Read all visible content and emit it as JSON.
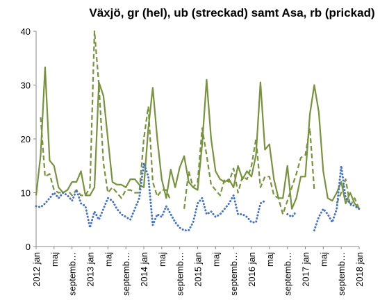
{
  "chart_data": {
    "type": "line",
    "title": "Växjö, gr (hel), ub (streckad) samt Asa, rb (prickad)",
    "categories": [
      "2012 jan",
      null,
      null,
      null,
      "maj",
      null,
      null,
      null,
      "septemb…",
      null,
      null,
      null,
      "2013 jan",
      null,
      null,
      null,
      "maj",
      null,
      null,
      null,
      "septemb…",
      null,
      null,
      null,
      "2014 jan",
      null,
      null,
      null,
      "maj",
      null,
      null,
      null,
      "septemb…",
      null,
      null,
      null,
      "2015 jan",
      null,
      null,
      null,
      "maj",
      null,
      null,
      null,
      "septemb…",
      null,
      null,
      null,
      "2016 jan",
      null,
      null,
      null,
      "maj",
      null,
      null,
      null,
      "septemb…",
      null,
      null,
      null,
      "2017 jan",
      null,
      null,
      null,
      "maj",
      null,
      null,
      null,
      "septemb…",
      null,
      null,
      null,
      "2018 jan"
    ],
    "ylim": [
      0,
      40
    ],
    "yticks": [
      0,
      10,
      20,
      30,
      40
    ],
    "grid": false,
    "series": [
      {
        "color": "#77933c",
        "style": "solid",
        "values": [
          9.5,
          17,
          33.3,
          16,
          15,
          11,
          10,
          10.5,
          12,
          12,
          14,
          9.5,
          9.5,
          11,
          30.5,
          28,
          20,
          12,
          11.5,
          11.5,
          11,
          12.5,
          12.5,
          11.5,
          11,
          22,
          29.5,
          20,
          12.5,
          9,
          14.3,
          11,
          14.7,
          16.8,
          12,
          11,
          10.5,
          19,
          31,
          20,
          14,
          12.5,
          12,
          12.5,
          11,
          15,
          12.5,
          14,
          13,
          17,
          30.5,
          18,
          19,
          12.5,
          9,
          9,
          15,
          7,
          9,
          13,
          13,
          24.5,
          30,
          25,
          14,
          9,
          8.5,
          10,
          12,
          8,
          10,
          8,
          7
        ]
      },
      {
        "color": "#77933c",
        "style": "dashed",
        "values": [
          null,
          24,
          13,
          13.5,
          10.5,
          10,
          10,
          10.5,
          9.5,
          10.5,
          9.5,
          9.5,
          11,
          40,
          30,
          15.5,
          10,
          11,
          10,
          9,
          10.5,
          10.5,
          10,
          10,
          20,
          26,
          12,
          9.3,
          10.5,
          10.5,
          8.5,
          null,
          null,
          7,
          14,
          11,
          12,
          22,
          17,
          11.5,
          10.5,
          9.5,
          12.5,
          12,
          14.5,
          10,
          13,
          12.5,
          15,
          20,
          11,
          13,
          13,
          9.5,
          9,
          6,
          8.5,
          11,
          13.5,
          16.5,
          17,
          22,
          10.5,
          null,
          null,
          null,
          null,
          8,
          10,
          12.5,
          7.5,
          9,
          7
        ]
      },
      {
        "color": "#4472c4",
        "style": "dotted",
        "values": [
          7.5,
          7.3,
          8,
          9,
          10,
          9,
          10,
          9.5,
          8.5,
          10.5,
          8,
          7.5,
          3.5,
          6.5,
          5,
          7,
          9,
          8.5,
          7,
          6,
          5.5,
          5,
          7,
          9,
          15.5,
          13,
          4,
          6,
          5.5,
          7.5,
          6,
          4.5,
          3.5,
          3,
          3,
          4.5,
          8,
          9,
          6,
          6.5,
          5.5,
          6,
          7,
          8,
          9.5,
          6,
          6,
          5.5,
          4.5,
          4.5,
          8,
          8.5,
          null,
          null,
          null,
          null,
          6,
          5.5,
          6.5,
          null,
          null,
          null,
          3,
          5.5,
          7,
          6,
          4.5,
          7,
          15,
          9,
          8,
          7.5,
          7
        ]
      }
    ]
  }
}
